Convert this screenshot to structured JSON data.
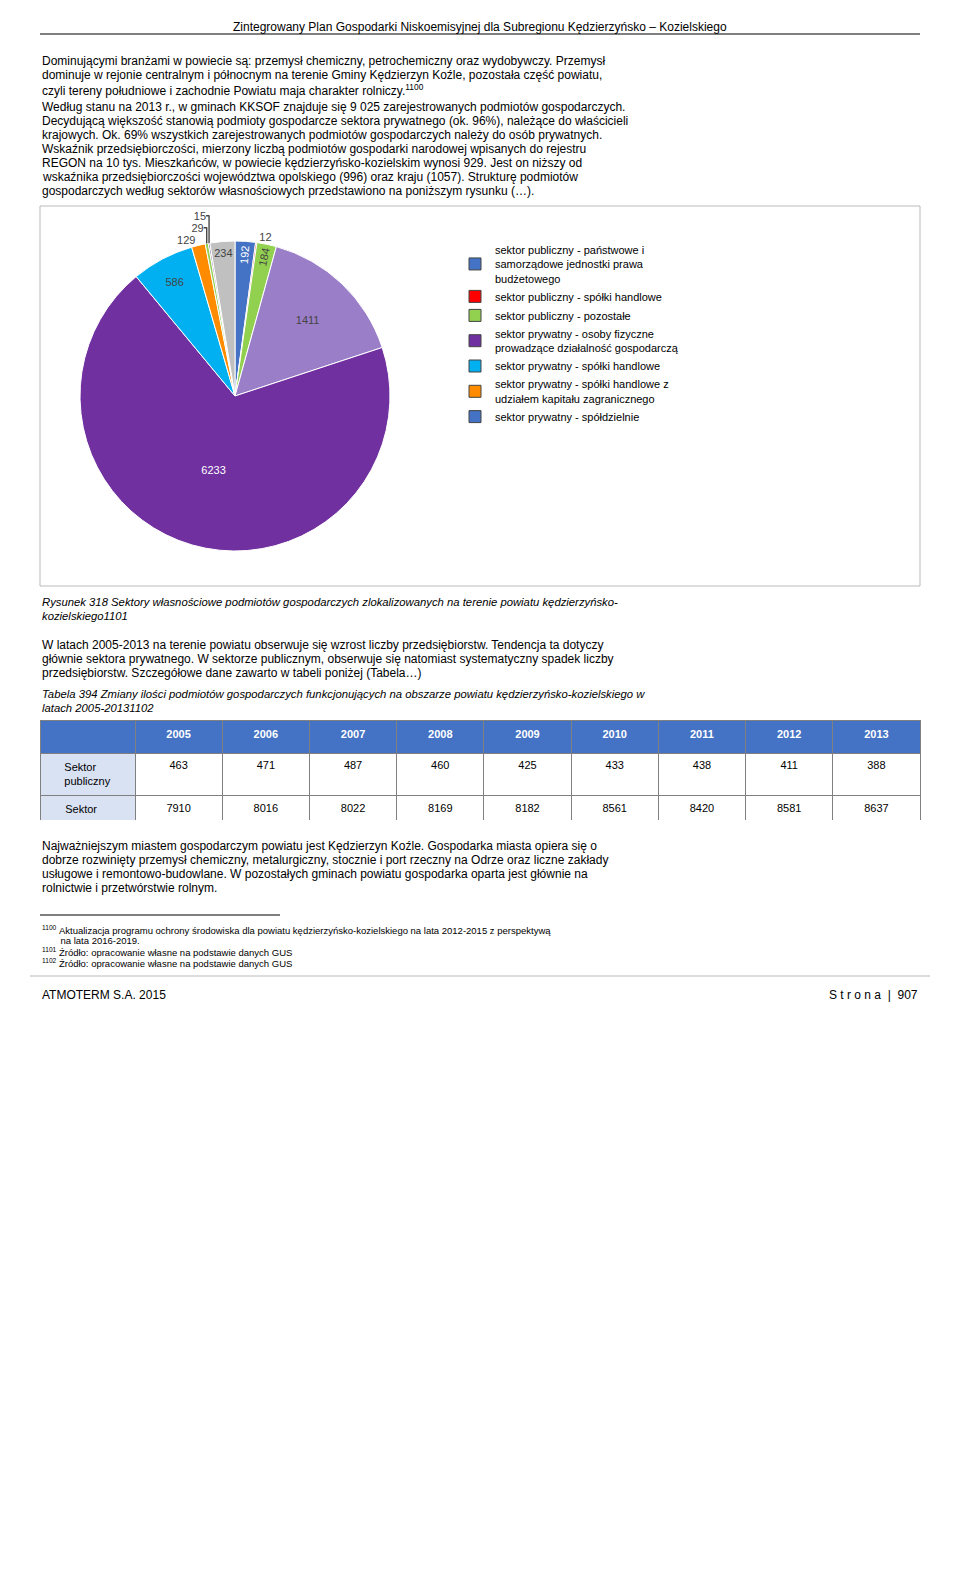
{
  "chart_data": [
    {
      "type": "pie",
      "title": "Rysunek 318 Sektory własnościowe podmiotów gospodarczych zlokalizowanych na terenie powiatu kędzierzyńsko-\nkozielskiego1101",
      "values": [
        192,
        12,
        184,
        1411,
        6233,
        586,
        129,
        29,
        15,
        234
      ],
      "colors": [
        "#4472C4",
        "#FF0000",
        "#92D050",
        "#9B7EC8",
        "#7030A0",
        "#00B0F0",
        "#FF8C00",
        "#92D050",
        "#8064A2",
        "#C0C0C0"
      ],
      "data_labels": true,
      "legend": "right",
      "legend_entries": [
        {
          "name": "sektor publiczny - państwowe i\nsamorządowe jednostki prawa\nbudżetowego",
          "color": "#4472C4"
        },
        {
          "name": "sektor publiczny - spółki handlowe",
          "color": "#FF0000"
        },
        {
          "name": "sektor publiczny - pozostałe",
          "color": "#92D050"
        },
        {
          "name": "sektor prywatny - osoby fizyczne\nprowadzące działalność gospodarczą",
          "color": "#7030A0"
        },
        {
          "name": "sektor prywatny - spółki handlowe",
          "color": "#00B0F0"
        },
        {
          "name": "sektor prywatny - spółki handlowe z\nudziałem kapitału zagranicznego",
          "color": "#FF8C00"
        },
        {
          "name": "sektor prywatny - spółdzielnie",
          "color": "#4472C4"
        }
      ]
    },
    {
      "type": "table",
      "title": "Tabela 394 Zmiany ilości podmiotów gospodarczych funkcjonujących na obszarze powiatu kędzierzyńsko-kozielskiego w\nlatach 2005-20131102",
      "columns": [
        "2005",
        "2006",
        "2007",
        "2008",
        "2009",
        "2010",
        "2011",
        "2012",
        "2013"
      ],
      "rows": [
        {
          "name": "Sektor\npubliczny",
          "values": [
            463,
            471,
            487,
            460,
            425,
            433,
            438,
            411,
            388
          ]
        },
        {
          "name": "Sektor\nprywatny",
          "values": [
            7910,
            8016,
            8022,
            8169,
            8182,
            8561,
            8420,
            8581,
            8637
          ]
        }
      ],
      "header_color": "#4472C4",
      "header_text_color": "#FFFFFF",
      "label_color": "#D9E2F3"
    }
  ],
  "annotations": {
    "header": "Zintegrowany Plan Gospodarki Niskoemisyjnej dla Subregionu Kędzierzyńsko – Kozielskiego",
    "paragraph_1": [
      "Dominującymi branżami w powiecie są: przemysł chemiczny, petrochemiczny oraz wydobywczy. Przemysł",
      "dominuje w rejonie centralnym i północnym na terenie Gminy Kędzierzyn Koźle, pozostała część powiatu,",
      "czyli tereny południowe i zachodnie Powiatu maja charakter rolniczy."
    ],
    "paragraph_1_mark": "1100",
    "paragraph_2": [
      "Według stanu na 2013 r., w gminach KKSOF znajduje się 9 025 zarejestrowanych podmiotów gospodarczych.",
      "Decydującą większość stanowią podmioty gospodarcze sektora prywatnego (ok. 96%), należące do właścicieli",
      "krajowych. Ok. 69% wszystkich zarejestrowanych podmiotów gospodarczych należy do osób prywatnych.",
      "Wskaźnik przedsiębiorczości, mierzony liczbą podmiotów gospodarki narodowej wpisanych do rejestru",
      "REGON na 10 tys. Mieszkańców, w powiecie kędzierzyńsko-kozielskim wynosi 929. Jest on niższy od",
      "wskaźnika przedsiębiorczości województwa opolskiego (996) oraz kraju (1057). Strukturę podmiotów",
      "gospodarczych według sektorów własnościowych przedstawiono na poniższym rysunku (…)."
    ],
    "paragraph_3": [
      "W latach 2005-2013 na terenie powiatu obserwuje się wzrost liczby przedsiębiorstw. Tendencja ta dotyczy",
      "głównie sektora prywatnego. W sektorze publicznym, obserwuje się natomiast systematyczny spadek liczby",
      "przedsiębiorstw. Szczegółowe dane zawarto w tabeli poniżej (Tabela…)"
    ],
    "paragraph_4": [
      "Najważniejszym miastem gospodarczym powiatu jest Kędzierzyn Koźle. Gospodarka miasta opiera się o",
      "dobrze rozwinięty przemysł chemiczny, metalurgiczny, stocznie i port rzeczny na Odrze oraz liczne zakłady",
      "usługowe i remontowo-budowlane. W pozostałych gminach powiatu gospodarka oparta jest głównie na",
      "rolnictwie i przetwórstwie rolnym."
    ],
    "footnotes": [
      {
        "mark": "1100",
        "text": " Aktualizacja programu ochrony środowiska dla powiatu kędzierzyńsko-kozielskiego na lata 2012-2015 z perspektywą"
      },
      {
        "text": "       na lata 2016-2019."
      },
      {
        "mark": "1101",
        "text": " Źródło: opracowanie własne na podstawie danych GUS"
      },
      {
        "mark": "1102",
        "text": " Źródło: opracowanie własne na podstawie danych GUS"
      }
    ],
    "footer_left": "ATMOTERM S.A. 2015",
    "footer_right": "S t r o n a  |  907"
  }
}
